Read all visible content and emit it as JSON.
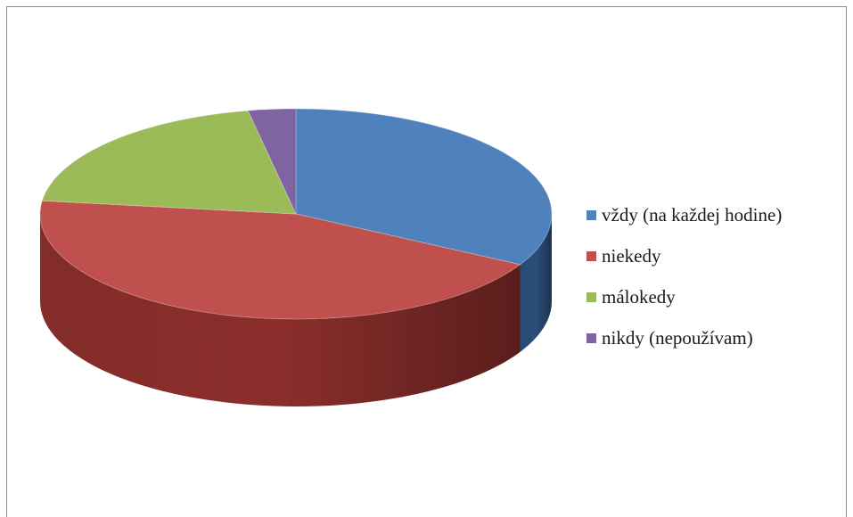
{
  "chart_data": {
    "type": "pie",
    "title": "",
    "categories": [
      "vždy (na každej hodine)",
      "niekedy",
      "málokedy",
      "nikdy (nepoužívam)"
    ],
    "values": [
      33,
      44,
      20,
      3
    ],
    "colors": [
      "#4f81bd",
      "#c0504d",
      "#9bbb59",
      "#8064a2"
    ],
    "side_colors": [
      "#2b4e78",
      "#8a2e2b",
      "#5f7a30",
      "#4e3a70"
    ],
    "legend": {
      "position": "right",
      "entries": [
        "vždy (na každej hodine)",
        "niekedy",
        "málokedy",
        "nikdy (nepoužívam)"
      ]
    },
    "style": "3d"
  }
}
